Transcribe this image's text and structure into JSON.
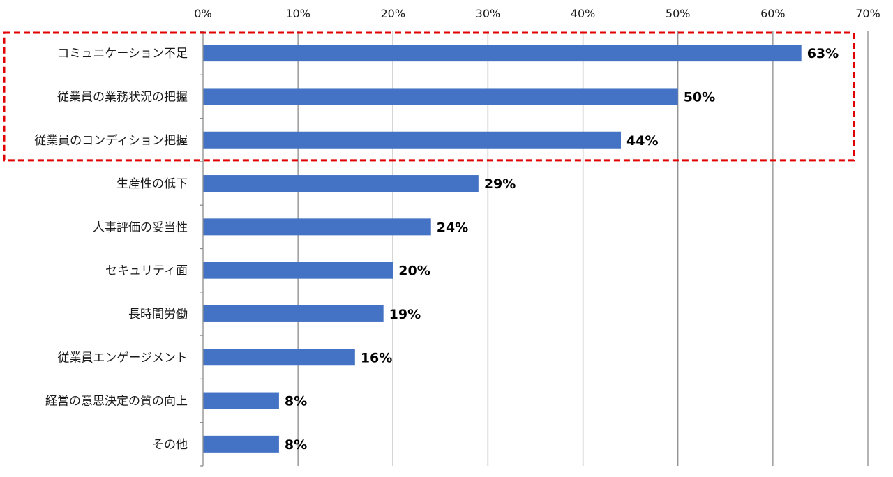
{
  "chart_data": {
    "type": "bar",
    "orientation": "horizontal",
    "categories": [
      "コミュニケーション不足",
      "従業員の業務状況の把握",
      "従業員のコンディション把握",
      "生産性の低下",
      "人事評価の妥当性",
      "セキュリティ面",
      "長時間労働",
      "従業員エンゲージメント",
      "経営の意思決定の質の向上",
      "その他"
    ],
    "values": [
      63,
      50,
      44,
      29,
      24,
      20,
      19,
      16,
      8,
      8
    ],
    "value_labels": [
      "63%",
      "50%",
      "44%",
      "29%",
      "24%",
      "20%",
      "19%",
      "16%",
      "8%",
      "8%"
    ],
    "xlim": [
      0,
      70
    ],
    "x_ticks": [
      0,
      10,
      20,
      30,
      40,
      50,
      60,
      70
    ],
    "x_tick_labels": [
      "0%",
      "10%",
      "20%",
      "30%",
      "40%",
      "50%",
      "60%",
      "70%"
    ],
    "x_axis_position": "top",
    "grid": true,
    "title": "",
    "xlabel": "",
    "ylabel": "",
    "highlight": {
      "categories": [
        "コミュニケーション不足",
        "従業員の業務状況の把握",
        "従業員のコンディション把握"
      ],
      "style": "dashed-box"
    },
    "colors": {
      "bar": "#4472C4",
      "grid": "#8c8c8c",
      "highlight": "#E00000"
    }
  }
}
